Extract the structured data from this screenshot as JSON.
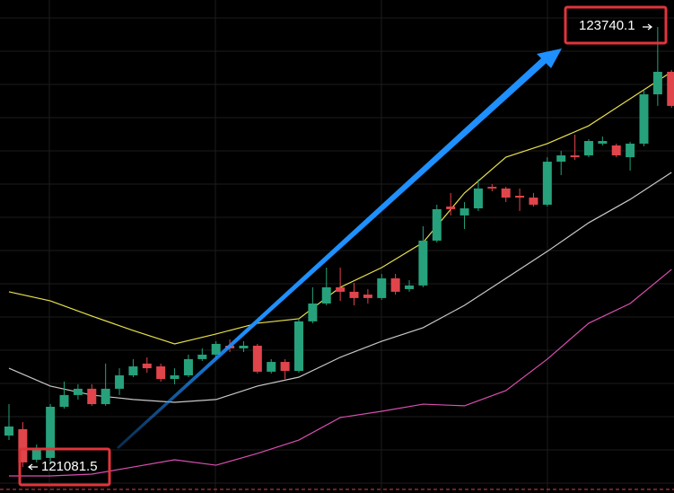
{
  "chart_data": {
    "type": "candlestick",
    "categories": [
      null,
      null,
      null,
      null,
      null,
      null,
      null,
      null,
      null,
      null,
      null,
      null,
      null,
      null,
      null,
      null,
      null,
      null,
      null,
      null,
      null,
      null,
      null,
      null,
      null,
      null,
      null,
      null,
      null,
      null,
      null,
      null,
      null,
      null,
      null,
      null,
      null,
      null,
      null,
      null,
      null,
      null,
      null,
      null,
      null,
      null,
      null,
      null,
      null
    ],
    "open": [
      121271,
      121310,
      121125,
      121136,
      121445,
      121516,
      121554,
      121461,
      121554,
      121635,
      121706,
      121689,
      121613,
      121635,
      121733,
      121760,
      121814,
      121798,
      121814,
      121657,
      121716,
      121662,
      121961,
      122069,
      122167,
      122140,
      122123,
      122102,
      122221,
      122156,
      122178,
      122449,
      122655,
      122601,
      122644,
      122774,
      122764,
      122720,
      122709,
      122666,
      122926,
      122964,
      122964,
      123035,
      123024,
      122953,
      123035,
      123333,
      123469
    ],
    "high": [
      121461,
      121353,
      121217,
      121461,
      121597,
      121581,
      121581,
      121706,
      121678,
      121733,
      121744,
      121706,
      121678,
      121760,
      121798,
      121841,
      121852,
      121841,
      121825,
      121733,
      121733,
      121977,
      122167,
      122286,
      122286,
      122194,
      122156,
      122248,
      122248,
      122210,
      122536,
      122666,
      122737,
      122682,
      122818,
      122791,
      122774,
      122764,
      122737,
      122953,
      122991,
      123089,
      123062,
      123078,
      123035,
      123046,
      123360,
      123740.1,
      123480
    ],
    "low": [
      121244,
      121081.5,
      121109,
      121109,
      121434,
      121489,
      121451,
      121451,
      121516,
      121624,
      121651,
      121597,
      121581,
      121624,
      121722,
      121733,
      121776,
      121776,
      121646,
      121646,
      121613,
      121651,
      121950,
      122058,
      122085,
      122058,
      122069,
      122091,
      122123,
      122140,
      122167,
      122438,
      122601,
      122519,
      122628,
      122747,
      122682,
      122628,
      122655,
      122655,
      122845,
      122937,
      122953,
      123024,
      122953,
      122872,
      123019,
      123263,
      123252
    ],
    "close": [
      121326,
      121109,
      121190,
      121445,
      121516,
      121554,
      121461,
      121554,
      121635,
      121689,
      121678,
      121613,
      121635,
      121733,
      121760,
      121825,
      121798,
      121814,
      121657,
      121716,
      121662,
      121961,
      122069,
      122167,
      122140,
      122102,
      122102,
      122221,
      122140,
      122178,
      122449,
      122639,
      122639,
      122644,
      122764,
      122764,
      122709,
      122709,
      122666,
      122926,
      122964,
      122953,
      123051,
      123051,
      122964,
      123035,
      123333,
      123469,
      123263
    ],
    "up_color": "#26a17b",
    "down_color": "#e0454b",
    "ylim": [
      120924.1,
      123902.9
    ],
    "grid": true,
    "lines": [
      {
        "color": "#e8e04a",
        "x": [
          0,
          3,
          6,
          9,
          12,
          15,
          18,
          21,
          24,
          27,
          30,
          33,
          36,
          39,
          42,
          45,
          48
        ],
        "values": [
          122140,
          122085,
          121993,
          121906,
          121825,
          121885,
          121950,
          121977,
          122167,
          122286,
          122438,
          122737,
          122953,
          123035,
          123143,
          123306,
          123469
        ]
      },
      {
        "color": "#c8c8c8",
        "x": [
          0,
          3,
          6,
          9,
          12,
          15,
          18,
          21,
          24,
          27,
          30,
          33,
          36,
          39,
          42,
          45,
          48
        ],
        "values": [
          121678,
          121570,
          121516,
          121489,
          121472,
          121489,
          121570,
          121624,
          121744,
          121841,
          121923,
          122058,
          122221,
          122384,
          122557,
          122698,
          122861
        ]
      },
      {
        "color": "#d94fb0",
        "x": [
          0,
          3,
          6,
          9,
          12,
          15,
          18,
          21,
          24,
          27,
          30,
          33,
          36,
          39,
          42,
          45,
          48
        ],
        "values": [
          121027,
          121027,
          121038,
          121081,
          121125,
          121092,
          121163,
          121244,
          121380,
          121418,
          121461,
          121451,
          121543,
          121733,
          121950,
          122069,
          122275
        ]
      }
    ]
  }
}
